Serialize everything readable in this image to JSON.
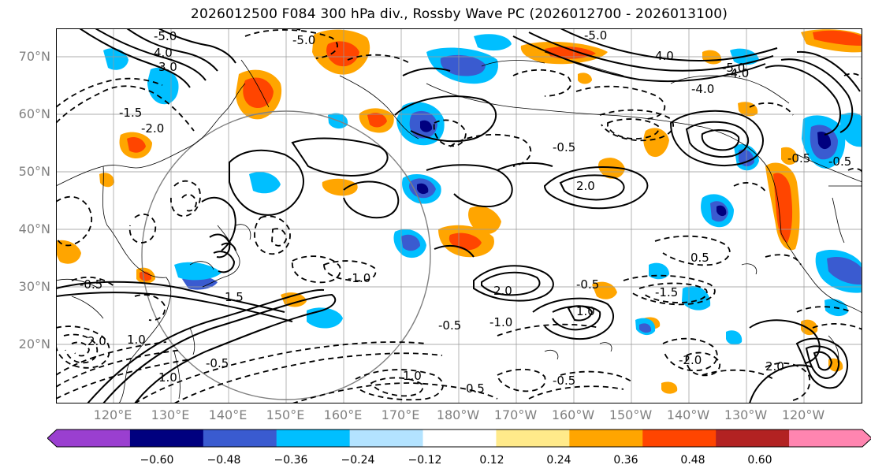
{
  "title": "2026012500 F084 300 hPa div., Rossby Wave PC (2026012700 - 2026013100)",
  "lat_labels": [
    "70°N",
    "60°N",
    "50°N",
    "40°N",
    "30°N",
    "20°N"
  ],
  "lon_labels": [
    "120°E",
    "130°E",
    "140°E",
    "150°E",
    "160°E",
    "170°E",
    "180°W",
    "170°W",
    "160°W",
    "150°W",
    "140°W",
    "130°W",
    "120°W"
  ],
  "contour_labels": [
    "-5.0",
    "4.0",
    "3.0",
    "-1.5",
    "-2.0",
    "-0.5",
    "1.0",
    "2.0",
    "-1.0",
    "0.5",
    "1.5",
    "-4.0"
  ],
  "colorbar": {
    "ticks": [
      "−0.60",
      "−0.48",
      "−0.36",
      "−0.24",
      "−0.12",
      "0.12",
      "0.24",
      "0.36",
      "0.48",
      "0.60"
    ],
    "colors": [
      "#9a3fd0",
      "#00007f",
      "#3a5bd0",
      "#00bfff",
      "#b3e3ff",
      "#ffffff",
      "#ffea8a",
      "#ffa500",
      "#ff4500",
      "#b22222",
      "#ff85b0"
    ]
  }
}
